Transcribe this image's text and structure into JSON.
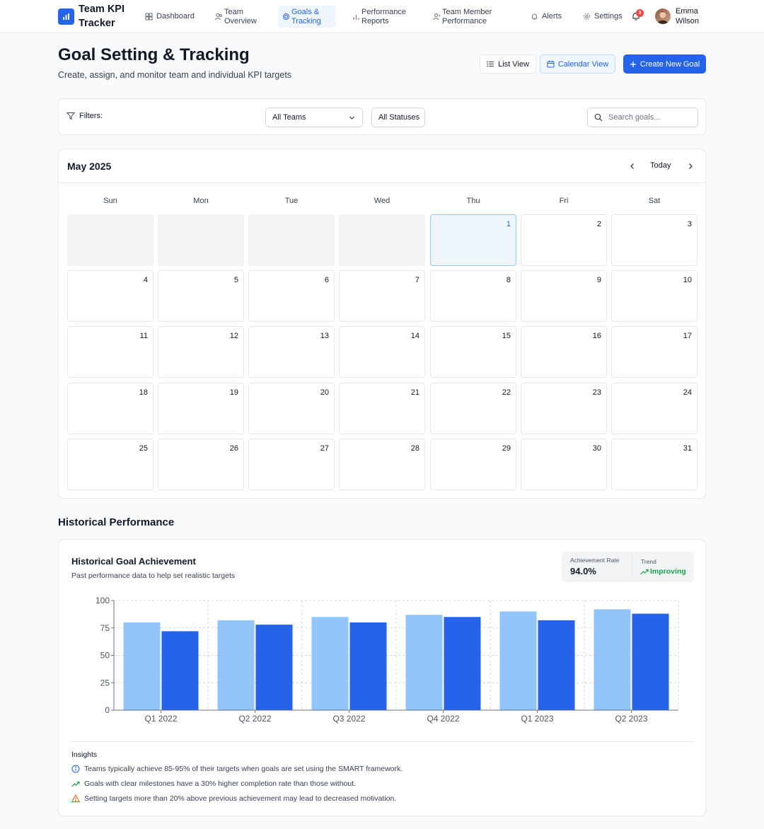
{
  "app": {
    "brand": "Team KPI Tracker"
  },
  "nav": [
    {
      "label": "Dashboard",
      "icon": "dashboard-icon"
    },
    {
      "label": "Team Overview",
      "icon": "team-icon"
    },
    {
      "label": "Goals & Tracking",
      "icon": "target-icon",
      "active": true
    },
    {
      "label": "Performance Reports",
      "icon": "bar-chart-icon"
    },
    {
      "label": "Team Member Performance",
      "icon": "user-performance-icon"
    },
    {
      "label": "Alerts",
      "icon": "bell-icon"
    },
    {
      "label": "Settings",
      "icon": "gear-icon"
    }
  ],
  "notifications": {
    "count": "3"
  },
  "user": {
    "name": "Emma Wilson"
  },
  "header": {
    "title": "Goal Setting & Tracking",
    "subtitle": "Create, assign, and monitor team and individual KPI targets",
    "list_view": "List View",
    "calendar_view": "Calendar View",
    "create": "Create New Goal"
  },
  "filters": {
    "label": "Filters:",
    "teams": "All Teams",
    "statuses": "All Statuses",
    "search_placeholder": "Search goals..."
  },
  "calendar": {
    "month": "May 2025",
    "today_label": "Today",
    "weekdays": [
      "Sun",
      "Mon",
      "Tue",
      "Wed",
      "Thu",
      "Fri",
      "Sat"
    ],
    "leading_blank_days": 4,
    "days_in_month": 31,
    "highlighted_day": 1
  },
  "historical": {
    "section_title": "Historical Performance",
    "card_title": "Historical Goal Achievement",
    "card_subtitle": "Past performance data to help set realistic targets",
    "achievement_label": "Achievement Rate",
    "achievement_value": "94.0%",
    "trend_label": "Trend",
    "trend_value": "Improving",
    "insights_title": "Insights",
    "insights": [
      {
        "icon": "info-icon",
        "text": "Teams typically achieve 85-95% of their targets when goals are set using the SMART framework."
      },
      {
        "icon": "trending-up-icon",
        "text": "Goals with clear milestones have a 30% higher completion rate than those without."
      },
      {
        "icon": "warning-icon",
        "text": "Setting targets more than 20% above previous achievement may lead to decreased motivation."
      }
    ]
  },
  "colors": {
    "accent": "#2563eb",
    "series_light": "#93c5fd",
    "series_dark": "#2563eb",
    "positive": "#16a34a"
  },
  "chart_data": {
    "type": "bar",
    "categories": [
      "Q1 2022",
      "Q2 2022",
      "Q3 2022",
      "Q4 2022",
      "Q1 2023",
      "Q2 2023"
    ],
    "series": [
      {
        "values": [
          80,
          82,
          85,
          87,
          90,
          92
        ]
      },
      {
        "values": [
          72,
          78,
          80,
          85,
          82,
          88
        ]
      }
    ],
    "ylim": [
      0,
      100
    ],
    "yticks": [
      0,
      25,
      50,
      75,
      100
    ],
    "grid": true
  }
}
